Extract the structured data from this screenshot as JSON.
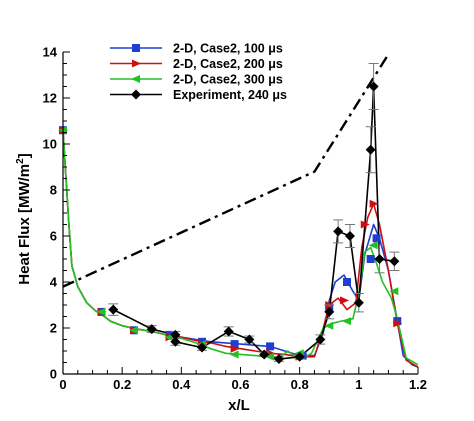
{
  "chart_data": {
    "type": "line",
    "xlabel": "x/L",
    "ylabel": "Heat Flux [MW/m",
    "ylabel_sup": "2",
    "ylabel_end": "]",
    "xlim": [
      0,
      1.2
    ],
    "ylim": [
      0,
      14
    ],
    "x_ticks": [
      0,
      0.2,
      0.4,
      0.6,
      0.8,
      1,
      1.2
    ],
    "x_tick_labels": [
      "0",
      "0.2",
      "0.4",
      "0.6",
      "0.8",
      "1",
      "1.2"
    ],
    "y_ticks": [
      0,
      2,
      4,
      6,
      8,
      10,
      12,
      14
    ],
    "y_tick_labels": [
      "0",
      "2",
      "4",
      "6",
      "8",
      "10",
      "12",
      "14"
    ],
    "grid": false,
    "legend_position": "top-left",
    "series": [
      {
        "name": "2-D, Case2, 100 μs",
        "color": "#1f3fcf",
        "marker": "square",
        "x": [
          0,
          0.01,
          0.02,
          0.03,
          0.05,
          0.08,
          0.11,
          0.13,
          0.16,
          0.2,
          0.25,
          0.3,
          0.35,
          0.4,
          0.45,
          0.5,
          0.55,
          0.6,
          0.65,
          0.7,
          0.75,
          0.8,
          0.85,
          0.88,
          0.9,
          0.92,
          0.95,
          0.98,
          1.0,
          1.02,
          1.05,
          1.07,
          1.1,
          1.13,
          1.15,
          1.18,
          1.2
        ],
        "y": [
          10.6,
          8.5,
          6.5,
          4.7,
          3.8,
          3.1,
          2.75,
          2.6,
          2.3,
          2.1,
          1.95,
          1.85,
          1.7,
          1.6,
          1.5,
          1.4,
          1.35,
          1.3,
          1.25,
          1.2,
          1.0,
          0.8,
          0.8,
          1.8,
          3.2,
          4.0,
          4.3,
          3.6,
          3.2,
          5.2,
          6.5,
          5.9,
          4.5,
          2.3,
          0.8,
          0.4,
          0.3
        ],
        "marker_x": [
          0,
          0.13,
          0.24,
          0.36,
          0.47,
          0.58,
          0.7,
          0.81,
          0.9,
          0.96,
          1.04,
          1.06,
          1.13
        ],
        "marker_y": [
          10.6,
          2.7,
          1.9,
          1.7,
          1.4,
          1.3,
          1.2,
          0.8,
          2.9,
          4.0,
          5.0,
          5.9,
          2.3
        ]
      },
      {
        "name": "2-D, Case2, 200 μs",
        "color": "#cc1010",
        "marker": "triangle-right",
        "x": [
          0,
          0.01,
          0.02,
          0.03,
          0.05,
          0.08,
          0.11,
          0.13,
          0.16,
          0.2,
          0.25,
          0.3,
          0.35,
          0.4,
          0.45,
          0.5,
          0.55,
          0.6,
          0.65,
          0.7,
          0.75,
          0.8,
          0.85,
          0.88,
          0.9,
          0.93,
          0.96,
          0.99,
          1.01,
          1.03,
          1.05,
          1.07,
          1.1,
          1.13,
          1.16,
          1.2
        ],
        "y": [
          10.6,
          8.5,
          6.5,
          4.7,
          3.8,
          3.1,
          2.75,
          2.6,
          2.3,
          2.1,
          1.95,
          1.85,
          1.7,
          1.6,
          1.45,
          1.35,
          1.2,
          1.1,
          1.0,
          0.9,
          0.85,
          0.75,
          0.75,
          2.0,
          3.0,
          3.3,
          2.8,
          3.1,
          5.5,
          6.8,
          7.4,
          6.5,
          4.5,
          2.2,
          0.6,
          0.3
        ],
        "marker_x": [
          0,
          0.13,
          0.24,
          0.36,
          0.47,
          0.58,
          0.7,
          0.8,
          0.9,
          0.95,
          1.02,
          1.05,
          1.13
        ],
        "marker_y": [
          10.6,
          2.7,
          1.9,
          1.6,
          1.3,
          1.1,
          0.9,
          0.75,
          3.0,
          3.2,
          6.5,
          7.4,
          2.2
        ]
      },
      {
        "name": "2-D, Case2, 300 μs",
        "color": "#22c122",
        "marker": "triangle-left",
        "x": [
          0,
          0.01,
          0.02,
          0.03,
          0.05,
          0.08,
          0.11,
          0.13,
          0.16,
          0.2,
          0.25,
          0.3,
          0.35,
          0.4,
          0.45,
          0.5,
          0.55,
          0.6,
          0.65,
          0.7,
          0.73,
          0.76,
          0.8,
          0.84,
          0.88,
          0.91,
          0.94,
          0.98,
          1.0,
          1.02,
          1.04,
          1.06,
          1.08,
          1.11,
          1.13,
          1.16,
          1.2
        ],
        "y": [
          10.6,
          8.5,
          6.5,
          4.7,
          3.8,
          3.1,
          2.75,
          2.6,
          2.3,
          2.1,
          1.95,
          1.85,
          1.7,
          1.55,
          1.35,
          1.1,
          0.9,
          0.85,
          0.8,
          0.75,
          0.7,
          1.0,
          0.6,
          0.9,
          2.0,
          2.2,
          2.3,
          2.4,
          3.5,
          5.3,
          5.5,
          4.8,
          4.0,
          3.3,
          2.4,
          0.7,
          0.4
        ],
        "marker_x": [
          0,
          0.13,
          0.24,
          0.36,
          0.47,
          0.58,
          0.7,
          0.8,
          0.9,
          0.96,
          1.05,
          1.12
        ],
        "marker_y": [
          10.6,
          2.7,
          1.9,
          1.6,
          1.3,
          0.85,
          0.75,
          0.9,
          2.1,
          2.3,
          5.6,
          3.6
        ]
      },
      {
        "name": "Experiment, 240 μs",
        "color": "#000000",
        "marker": "diamond",
        "x": [
          0.17,
          0.3,
          0.38,
          0.38,
          0.47,
          0.56,
          0.63,
          0.68,
          0.73,
          0.8,
          0.87,
          0.9,
          0.93,
          0.97,
          1.0,
          1.04,
          1.05,
          1.07,
          1.12
        ],
        "y": [
          2.8,
          1.95,
          1.7,
          1.4,
          1.15,
          1.85,
          1.5,
          0.85,
          0.65,
          0.75,
          1.5,
          2.7,
          6.2,
          6.0,
          3.1,
          9.75,
          12.5,
          5.0,
          4.9
        ],
        "err": [
          0.25,
          0.15,
          0.15,
          0.15,
          0.12,
          0.2,
          0.15,
          0.1,
          0.1,
          0.1,
          0.2,
          0.3,
          0.5,
          0.5,
          0.4,
          1.0,
          1.0,
          0.6,
          0.4
        ]
      },
      {
        "name": "",
        "color": "#000000",
        "style": "dash-dot",
        "x": [
          0,
          0.85,
          1.1
        ],
        "y": [
          3.8,
          8.8,
          13.9
        ]
      }
    ]
  }
}
